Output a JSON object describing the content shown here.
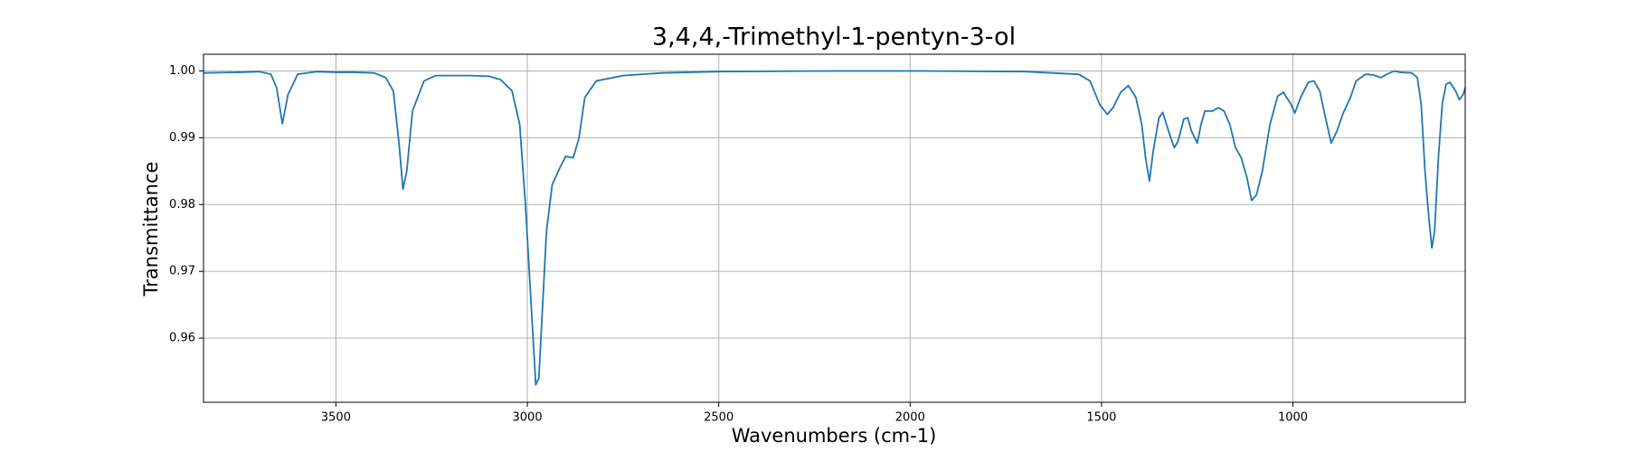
{
  "chart_data": {
    "type": "line",
    "title": "3,4,4,-Trimethyl-1-pentyn-3-ol",
    "xlabel": "Wavenumbers (cm-1)",
    "ylabel": "Transmittance",
    "color": "#1f77b4",
    "grid": true,
    "xlim": [
      3846,
      550
    ],
    "ylim": [
      0.9504,
      1.0025
    ],
    "xticks": [
      3500,
      3000,
      2500,
      2000,
      1500,
      1000
    ],
    "yticks": [
      0.96,
      0.97,
      0.98,
      0.99,
      {
        "value": 1,
        "label": "1.00"
      }
    ],
    "x": [
      3846,
      3750,
      3700,
      3670,
      3655,
      3640,
      3625,
      3600,
      3550,
      3500,
      3450,
      3400,
      3370,
      3350,
      3335,
      3325,
      3315,
      3300,
      3270,
      3240,
      3200,
      3150,
      3100,
      3070,
      3040,
      3020,
      3005,
      2990,
      2978,
      2970,
      2960,
      2950,
      2935,
      2915,
      2900,
      2880,
      2865,
      2850,
      2820,
      2750,
      2650,
      2500,
      2200,
      2000,
      1700,
      1560,
      1530,
      1505,
      1485,
      1470,
      1450,
      1430,
      1410,
      1395,
      1385,
      1375,
      1365,
      1350,
      1340,
      1325,
      1310,
      1300,
      1285,
      1275,
      1265,
      1250,
      1240,
      1230,
      1210,
      1195,
      1180,
      1165,
      1150,
      1135,
      1120,
      1108,
      1095,
      1080,
      1060,
      1040,
      1025,
      1005,
      995,
      980,
      960,
      945,
      930,
      915,
      900,
      885,
      870,
      850,
      835,
      810,
      790,
      770,
      755,
      735,
      720,
      690,
      675,
      665,
      655,
      645,
      637,
      630,
      620,
      610,
      600,
      590,
      575,
      565,
      555,
      550
    ],
    "values": [
      0.9997,
      0.9998,
      0.9999,
      0.9995,
      0.9975,
      0.9921,
      0.9965,
      0.9995,
      0.9999,
      0.9998,
      0.9998,
      0.9997,
      0.999,
      0.997,
      0.989,
      0.9823,
      0.985,
      0.994,
      0.9985,
      0.9993,
      0.9993,
      0.9993,
      0.9992,
      0.9987,
      0.997,
      0.992,
      0.98,
      0.965,
      0.953,
      0.954,
      0.965,
      0.976,
      0.983,
      0.9855,
      0.9872,
      0.987,
      0.99,
      0.996,
      0.9985,
      0.9993,
      0.9997,
      0.9999,
      1.0,
      1.0,
      0.9999,
      0.9995,
      0.9985,
      0.995,
      0.9935,
      0.9945,
      0.9968,
      0.9978,
      0.996,
      0.992,
      0.987,
      0.9835,
      0.988,
      0.993,
      0.9938,
      0.991,
      0.9885,
      0.9895,
      0.9928,
      0.993,
      0.991,
      0.9892,
      0.992,
      0.994,
      0.994,
      0.9945,
      0.994,
      0.992,
      0.9885,
      0.987,
      0.984,
      0.9806,
      0.9815,
      0.985,
      0.992,
      0.9962,
      0.9968,
      0.995,
      0.9937,
      0.996,
      0.9983,
      0.9985,
      0.997,
      0.993,
      0.9892,
      0.991,
      0.9935,
      0.996,
      0.9985,
      0.9995,
      0.9994,
      0.999,
      0.9995,
      1.0,
      0.9998,
      0.9997,
      0.999,
      0.995,
      0.985,
      0.978,
      0.9735,
      0.976,
      0.987,
      0.995,
      0.998,
      0.9983,
      0.997,
      0.9957,
      0.9965,
      0.9975
    ]
  }
}
